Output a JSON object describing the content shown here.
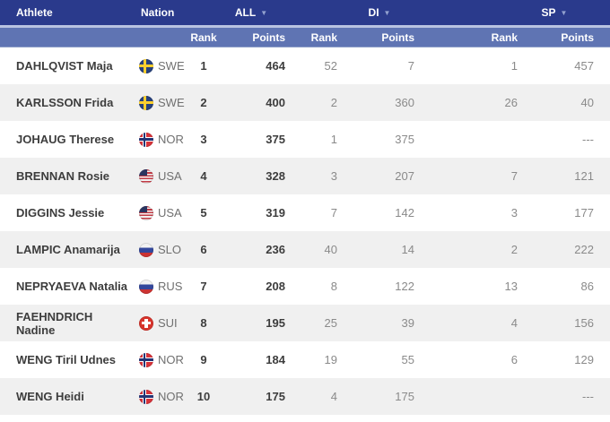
{
  "colors": {
    "header_bg": "#2a3a8c",
    "subheader_bg": "#5f74b3",
    "header_separator": "#b9c3e1",
    "row_alt_bg": "#f0f0f0",
    "text_primary": "#3d3d3d",
    "text_secondary": "#8a8a8a",
    "caret": "#93a2cf"
  },
  "table": {
    "headers": {
      "athlete": "Athlete",
      "nation": "Nation",
      "rank": "Rank",
      "points": "Points",
      "groups": [
        {
          "label": "ALL",
          "caret": "▼"
        },
        {
          "label": "DI",
          "caret": "▼"
        },
        {
          "label": "SP",
          "caret": "▼"
        }
      ]
    },
    "rows": [
      {
        "athlete": "DAHLQVIST Maja",
        "nation": "SWE",
        "all_rank": "1",
        "all_points": "464",
        "di_rank": "52",
        "di_points": "7",
        "sp_rank": "1",
        "sp_points": "457"
      },
      {
        "athlete": "KARLSSON Frida",
        "nation": "SWE",
        "all_rank": "2",
        "all_points": "400",
        "di_rank": "2",
        "di_points": "360",
        "sp_rank": "26",
        "sp_points": "40"
      },
      {
        "athlete": "JOHAUG Therese",
        "nation": "NOR",
        "all_rank": "3",
        "all_points": "375",
        "di_rank": "1",
        "di_points": "375",
        "sp_rank": "",
        "sp_points": "---"
      },
      {
        "athlete": "BRENNAN Rosie",
        "nation": "USA",
        "all_rank": "4",
        "all_points": "328",
        "di_rank": "3",
        "di_points": "207",
        "sp_rank": "7",
        "sp_points": "121"
      },
      {
        "athlete": "DIGGINS Jessie",
        "nation": "USA",
        "all_rank": "5",
        "all_points": "319",
        "di_rank": "7",
        "di_points": "142",
        "sp_rank": "3",
        "sp_points": "177"
      },
      {
        "athlete": "LAMPIC Anamarija",
        "nation": "SLO",
        "all_rank": "6",
        "all_points": "236",
        "di_rank": "40",
        "di_points": "14",
        "sp_rank": "2",
        "sp_points": "222"
      },
      {
        "athlete": "NEPRYAEVA Natalia",
        "nation": "RUS",
        "all_rank": "7",
        "all_points": "208",
        "di_rank": "8",
        "di_points": "122",
        "sp_rank": "13",
        "sp_points": "86"
      },
      {
        "athlete": "FAEHNDRICH Nadine",
        "nation": "SUI",
        "all_rank": "8",
        "all_points": "195",
        "di_rank": "25",
        "di_points": "39",
        "sp_rank": "4",
        "sp_points": "156"
      },
      {
        "athlete": "WENG Tiril Udnes",
        "nation": "NOR",
        "all_rank": "9",
        "all_points": "184",
        "di_rank": "19",
        "di_points": "55",
        "sp_rank": "6",
        "sp_points": "129"
      },
      {
        "athlete": "WENG Heidi",
        "nation": "NOR",
        "all_rank": "10",
        "all_points": "175",
        "di_rank": "4",
        "di_points": "175",
        "sp_rank": "",
        "sp_points": "---"
      }
    ]
  }
}
